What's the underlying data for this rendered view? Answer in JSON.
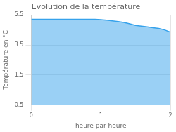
{
  "chart_data": {
    "type": "area",
    "title": "Evolution de la température",
    "xlabel": "heure par heure",
    "ylabel": "Température en °C",
    "x": [
      0.0,
      0.083,
      0.167,
      0.25,
      0.333,
      0.417,
      0.5,
      0.583,
      0.667,
      0.75,
      0.833,
      0.917,
      1.0,
      1.083,
      1.167,
      1.25,
      1.333,
      1.417,
      1.5,
      1.583,
      1.667,
      1.75,
      1.833,
      1.917,
      2.0
    ],
    "values": [
      5.2,
      5.2,
      5.2,
      5.2,
      5.2,
      5.2,
      5.2,
      5.2,
      5.2,
      5.2,
      5.2,
      5.2,
      5.18,
      5.15,
      5.1,
      5.05,
      5.0,
      4.9,
      4.8,
      4.75,
      4.7,
      4.65,
      4.6,
      4.5,
      4.35
    ],
    "xlim": [
      0,
      2
    ],
    "ylim": [
      -0.5,
      5.5
    ],
    "xticks": [
      0,
      1,
      2
    ],
    "yticks": [
      -0.5,
      1.5,
      3.5,
      5.5
    ],
    "grid": true
  }
}
